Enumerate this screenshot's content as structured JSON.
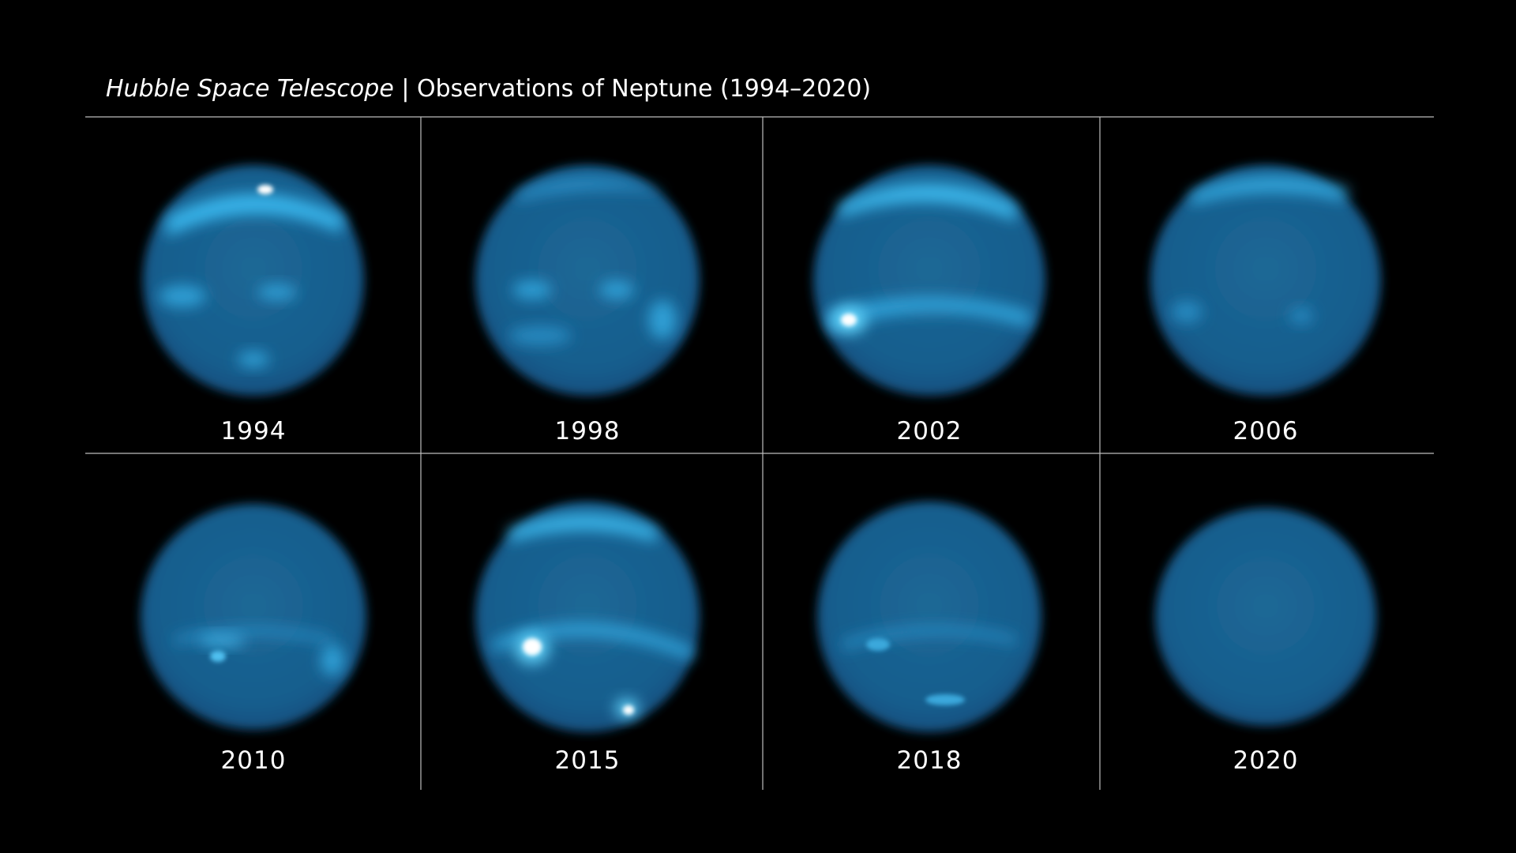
{
  "header": {
    "title_italic": "Hubble Space Telescope",
    "title_rest": "| Observations of Neptune (1994–2020)"
  },
  "panels": [
    {
      "year": "1994"
    },
    {
      "year": "1998"
    },
    {
      "year": "2002"
    },
    {
      "year": "2006"
    },
    {
      "year": "2010"
    },
    {
      "year": "2015"
    },
    {
      "year": "2018"
    },
    {
      "year": "2020"
    }
  ]
}
